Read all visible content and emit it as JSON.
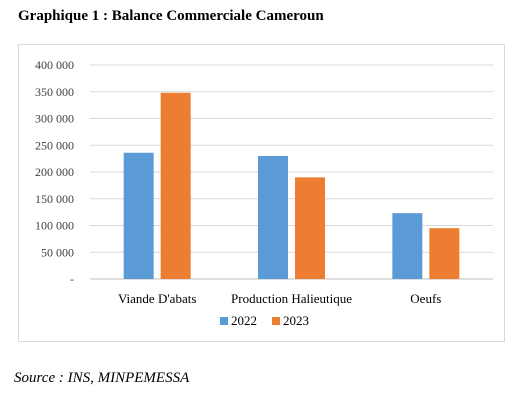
{
  "heading": "Graphique 1 : Balance Commerciale Cameroun",
  "source": "Source : INS, MINPEMESSA",
  "chart_data": {
    "type": "bar",
    "title": "",
    "xlabel": "",
    "ylabel": "",
    "categories": [
      "Viande D'abats",
      "Production Halieutique",
      "Oeufs"
    ],
    "series": [
      {
        "name": "2022",
        "color": "#5b9bd5",
        "values": [
          236000,
          230000,
          123000
        ]
      },
      {
        "name": "2023",
        "color": "#ed7d31",
        "values": [
          348000,
          190000,
          95000
        ]
      }
    ],
    "ylim": [
      0,
      400000
    ],
    "yticks": [
      {
        "value": 0,
        "label": "-"
      },
      {
        "value": 50000,
        "label": "50 000"
      },
      {
        "value": 100000,
        "label": "100 000"
      },
      {
        "value": 150000,
        "label": "150 000"
      },
      {
        "value": 200000,
        "label": "200 000"
      },
      {
        "value": 250000,
        "label": "250 000"
      },
      {
        "value": 300000,
        "label": "300 000"
      },
      {
        "value": 350000,
        "label": "350 000"
      },
      {
        "value": 400000,
        "label": "400 000"
      }
    ],
    "grid": true,
    "legend": "bottom"
  }
}
